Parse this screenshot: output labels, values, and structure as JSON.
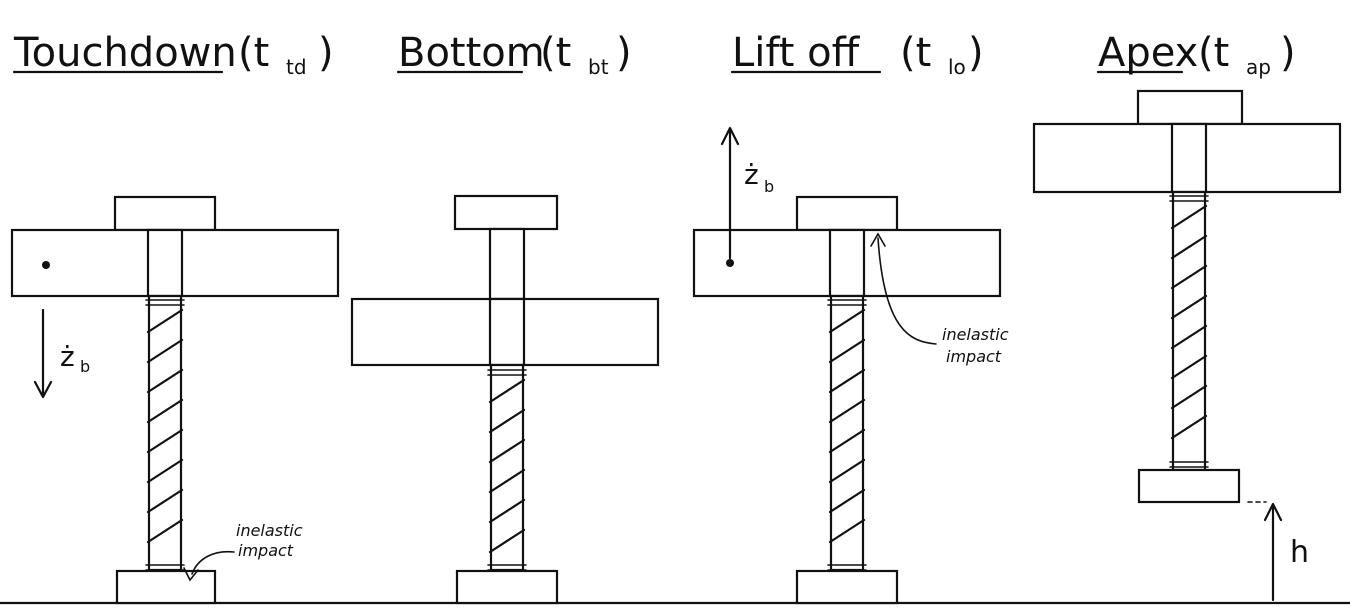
{
  "titles": {
    "touchdown": {
      "text": "Touchdown",
      "open": "(t",
      "sub": "td",
      "close": ")"
    },
    "bottom": {
      "text": "Bottom",
      "open": "(t",
      "sub": "bt",
      "close": ")"
    },
    "liftoff": {
      "text": "Lift off",
      "open": "(t",
      "sub": "lo",
      "close": ")"
    },
    "apex": {
      "text": "Apex",
      "open": "(t",
      "sub": "ap",
      "close": ")"
    }
  },
  "velocity_label": {
    "symbol": "ż",
    "sub": "b"
  },
  "notes": {
    "foot_impact": {
      "line1": "inelastic",
      "line2": "impact"
    },
    "body_impact": {
      "line1": "inelastic",
      "line2": "impact"
    }
  },
  "height_label": "h"
}
